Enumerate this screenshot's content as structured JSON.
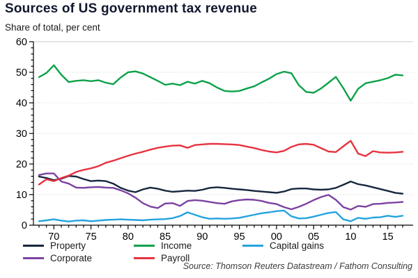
{
  "header": {
    "title": "Sources of US government tax revenue",
    "subtitle": "Share of total, per cent"
  },
  "source": "Source: Thomson Reuters Datastream / Fathom Consulting",
  "colors": {
    "title_text": "#10172e",
    "axis": "#000000",
    "gridline": "#d9d9d9",
    "top_border": "#c8c8c8",
    "property": "#16263c",
    "corporate": "#7b41a1",
    "income": "#0ca14a",
    "payroll": "#e73240",
    "capital_gains": "#24a3de"
  },
  "chart_data": {
    "type": "line",
    "title": "Sources of US government tax revenue",
    "ylabel": "Share of total, per cent",
    "ylim": [
      0,
      60
    ],
    "y_ticks": [
      0,
      10,
      20,
      30,
      40,
      50,
      60
    ],
    "y_minor_step": 2,
    "grid": "horizontal-dotted",
    "legend_position": "bottom",
    "x_range": [
      1968,
      2017
    ],
    "x": [
      1968,
      1969,
      1970,
      1971,
      1972,
      1973,
      1974,
      1975,
      1976,
      1977,
      1978,
      1979,
      1980,
      1981,
      1982,
      1983,
      1984,
      1985,
      1986,
      1987,
      1988,
      1989,
      1990,
      1991,
      1992,
      1993,
      1994,
      1995,
      1996,
      1997,
      1998,
      1999,
      2000,
      2001,
      2002,
      2003,
      2004,
      2005,
      2006,
      2007,
      2008,
      2009,
      2010,
      2011,
      2012,
      2013,
      2014,
      2015,
      2016,
      2017
    ],
    "x_major_ticks": [
      1970,
      1975,
      1980,
      1985,
      1990,
      1995,
      2000,
      2005,
      2010,
      2015
    ],
    "x_major_labels": [
      "70",
      "75",
      "80",
      "85",
      "90",
      "95",
      "00",
      "05",
      "10",
      "15"
    ],
    "series": [
      {
        "name": "Property",
        "color": "#16263c",
        "values": [
          15.9,
          15.4,
          14.7,
          15.2,
          16.1,
          15.9,
          15.1,
          14.4,
          14.6,
          14.4,
          13.6,
          12.2,
          11.3,
          10.8,
          11.7,
          12.3,
          11.9,
          11.3,
          10.9,
          11.1,
          11.3,
          11.2,
          11.6,
          12.2,
          12.4,
          12.2,
          11.9,
          11.7,
          11.5,
          11.2,
          11.0,
          10.8,
          10.6,
          11.0,
          11.8,
          12.0,
          12.0,
          11.7,
          11.6,
          11.7,
          12.2,
          13.2,
          14.3,
          13.4,
          13.0,
          12.4,
          11.8,
          11.2,
          10.6,
          10.3
        ]
      },
      {
        "name": "Corporate",
        "color": "#7b41a1",
        "values": [
          16.4,
          16.9,
          16.9,
          14.3,
          13.6,
          12.3,
          12.2,
          12.4,
          12.5,
          12.3,
          12.2,
          11.4,
          10.4,
          9.0,
          7.2,
          6.1,
          5.6,
          7.1,
          7.2,
          6.3,
          7.9,
          8.2,
          8.0,
          7.6,
          7.2,
          7.0,
          7.8,
          8.2,
          8.4,
          8.3,
          7.9,
          7.3,
          6.9,
          5.9,
          5.2,
          6.0,
          7.0,
          8.2,
          9.2,
          9.9,
          8.3,
          5.9,
          5.1,
          6.3,
          6.0,
          6.9,
          7.0,
          7.3,
          7.4,
          7.6
        ]
      },
      {
        "name": "Income",
        "color": "#0ca14a",
        "values": [
          48.4,
          49.8,
          52.3,
          49.2,
          46.8,
          47.2,
          47.4,
          47.1,
          47.4,
          46.6,
          46.1,
          48.3,
          50.0,
          50.3,
          49.6,
          48.4,
          47.2,
          45.9,
          46.3,
          45.8,
          46.9,
          46.3,
          47.2,
          46.4,
          45.0,
          43.9,
          43.7,
          43.9,
          44.7,
          45.4,
          46.7,
          47.9,
          49.4,
          50.2,
          49.7,
          45.8,
          43.6,
          43.3,
          44.7,
          46.6,
          48.5,
          44.8,
          40.7,
          44.6,
          46.4,
          46.9,
          47.4,
          48.1,
          49.2,
          49.0
        ]
      },
      {
        "name": "Payroll",
        "color": "#e73240",
        "values": [
          13.3,
          15.0,
          14.4,
          15.4,
          16.2,
          17.4,
          18.1,
          18.6,
          19.3,
          20.4,
          21.1,
          21.9,
          22.7,
          23.4,
          24.0,
          24.7,
          25.3,
          25.7,
          26.0,
          26.1,
          25.3,
          26.2,
          26.4,
          26.6,
          26.6,
          26.5,
          26.4,
          26.2,
          25.7,
          25.2,
          24.6,
          24.1,
          23.8,
          24.3,
          25.6,
          26.4,
          26.6,
          26.3,
          25.2,
          24.1,
          23.9,
          25.8,
          27.6,
          23.4,
          22.6,
          24.2,
          23.8,
          23.7,
          23.8,
          24.0
        ]
      },
      {
        "name": "Capital gains",
        "color": "#24a3de",
        "values": [
          1.3,
          1.6,
          1.9,
          1.5,
          1.2,
          1.5,
          1.6,
          1.3,
          1.5,
          1.7,
          1.8,
          1.9,
          1.8,
          1.7,
          1.6,
          1.8,
          1.9,
          2.0,
          2.3,
          3.0,
          4.2,
          3.4,
          2.6,
          2.1,
          2.2,
          2.1,
          2.2,
          2.4,
          2.9,
          3.4,
          3.9,
          4.2,
          4.6,
          4.8,
          2.9,
          2.2,
          2.3,
          2.8,
          3.4,
          4.0,
          4.3,
          1.9,
          1.3,
          2.4,
          2.1,
          2.5,
          2.6,
          3.1,
          2.7,
          3.1
        ]
      }
    ],
    "legend_columns": [
      [
        "Property",
        "Corporate"
      ],
      [
        "Income",
        "Payroll"
      ],
      [
        "Capital gains"
      ]
    ]
  }
}
